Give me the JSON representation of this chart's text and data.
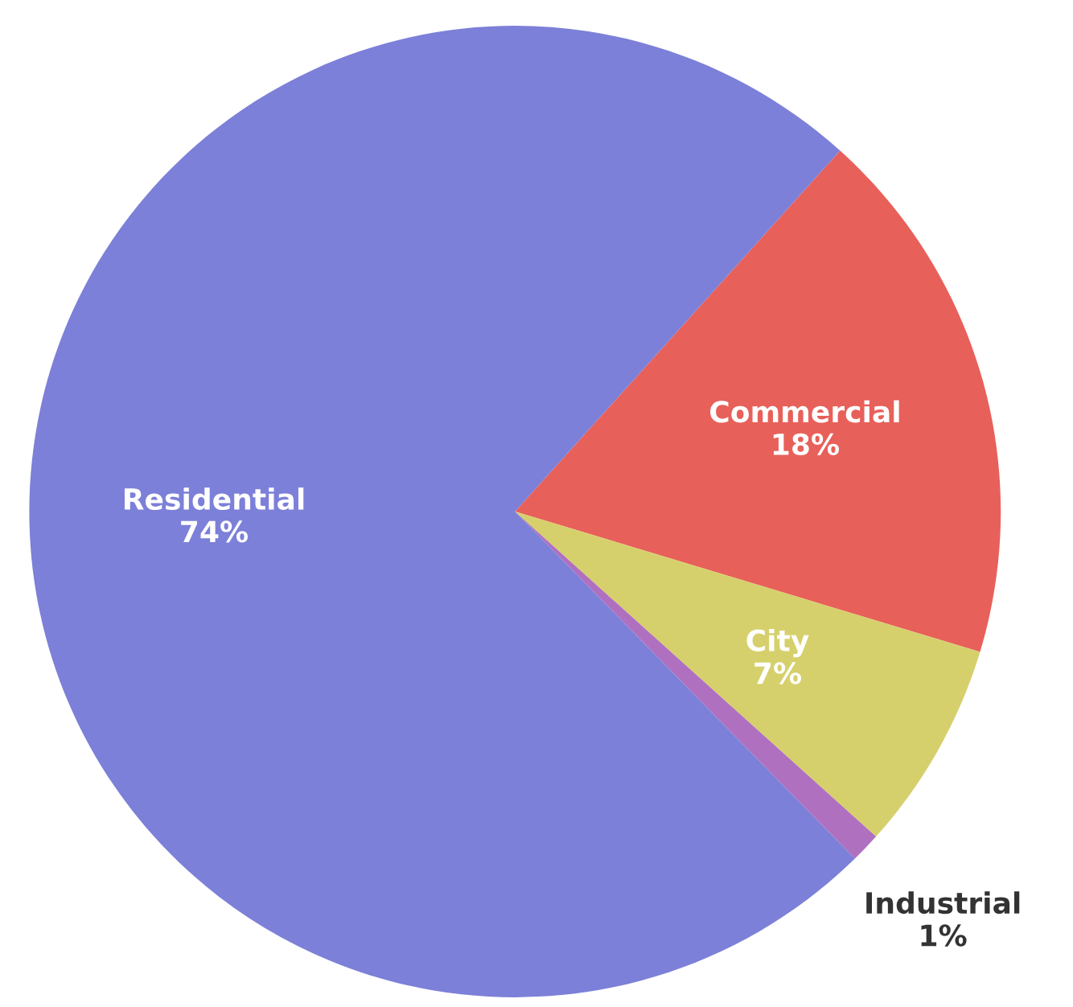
{
  "chart_data": {
    "type": "pie",
    "categories": [
      "Commercial",
      "City",
      "Industrial",
      "Residential"
    ],
    "values": [
      18,
      7,
      1,
      74
    ],
    "colors": [
      "#e8605a",
      "#d6d06c",
      "#b070c0",
      "#7c80d8"
    ],
    "value_labels": [
      "18%",
      "7%",
      "1%",
      "74%"
    ],
    "legend": false
  }
}
